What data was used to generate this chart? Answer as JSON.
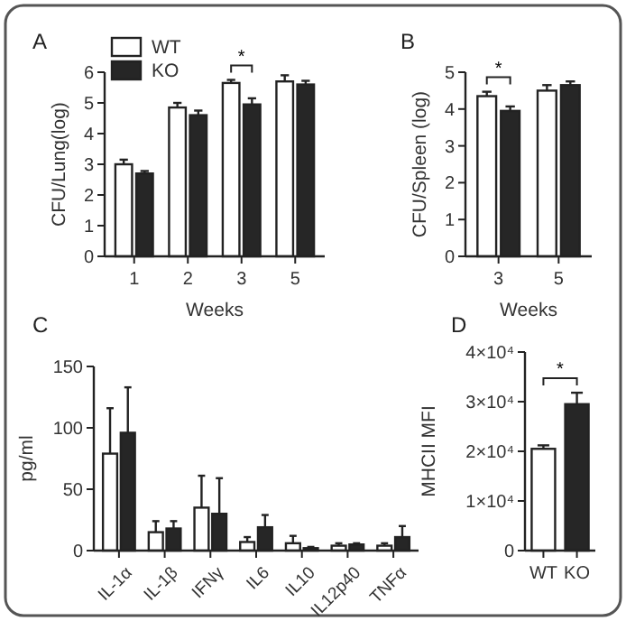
{
  "chart_data": [
    {
      "type": "bar",
      "title": "A",
      "xlabel": "Weeks",
      "ylabel": "CFU/Lung(log)",
      "categories": [
        "1",
        "2",
        "3",
        "5"
      ],
      "series": [
        {
          "name": "WT",
          "color": "#ffffff",
          "values": [
            3.0,
            4.85,
            5.65,
            5.7
          ],
          "errors": [
            0.15,
            0.15,
            0.1,
            0.2
          ]
        },
        {
          "name": "KO",
          "color": "#262626",
          "values": [
            2.7,
            4.6,
            4.95,
            5.6
          ],
          "errors": [
            0.08,
            0.15,
            0.2,
            0.12
          ]
        }
      ],
      "ylim": [
        0,
        6
      ],
      "yticks": [
        0,
        1,
        2,
        3,
        4,
        5,
        6
      ],
      "legend": "top left",
      "annotations": [
        "*"
      ]
    },
    {
      "type": "bar",
      "title": "B",
      "xlabel": "Weeks",
      "ylabel": "CFU/Spleen (log)",
      "categories": [
        "3",
        "5"
      ],
      "series": [
        {
          "color": "#ffffff",
          "values": [
            4.35,
            4.5
          ],
          "errors": [
            0.12,
            0.15
          ]
        },
        {
          "color": "#262626",
          "values": [
            3.95,
            4.65
          ],
          "errors": [
            0.12,
            0.1
          ]
        }
      ],
      "ylim": [
        0,
        5
      ],
      "yticks": [
        0,
        1,
        2,
        3,
        4,
        5
      ],
      "annotations": [
        "*"
      ]
    },
    {
      "type": "bar",
      "title": "C",
      "ylabel": "pg/ml",
      "categories": [
        "IL-1α",
        "IL-1β",
        "IFNγ",
        "IL6",
        "IL10",
        "IL12p40",
        "TNFα"
      ],
      "series": [
        {
          "color": "#ffffff",
          "values": [
            79,
            15,
            35,
            7,
            6,
            4,
            4
          ],
          "errors": [
            37,
            9,
            26,
            4,
            6,
            2,
            2
          ]
        },
        {
          "color": "#262626",
          "values": [
            96,
            18,
            30,
            19,
            2,
            5,
            11
          ],
          "errors": [
            37,
            6,
            29,
            10,
            1,
            1,
            9
          ]
        }
      ],
      "ylim": [
        0,
        150
      ],
      "yticks": [
        0,
        50,
        100,
        150
      ]
    },
    {
      "type": "bar",
      "title": "D",
      "ylabel": "MHCII MFI",
      "categories": [
        "WT",
        "KO"
      ],
      "series": [
        {
          "colors": [
            "#ffffff",
            "#262626"
          ],
          "values": [
            20500,
            29500
          ],
          "errors": [
            700,
            2300
          ]
        }
      ],
      "ylim": [
        0,
        40000
      ],
      "yticks": [
        0,
        {
          "value": 10000,
          "label": "1×10⁴"
        },
        {
          "value": 20000,
          "label": "2×10⁴"
        },
        {
          "value": 30000,
          "label": "3×10⁴"
        },
        {
          "value": 40000,
          "label": "4×10⁴"
        }
      ],
      "annotations": [
        "*"
      ]
    }
  ]
}
